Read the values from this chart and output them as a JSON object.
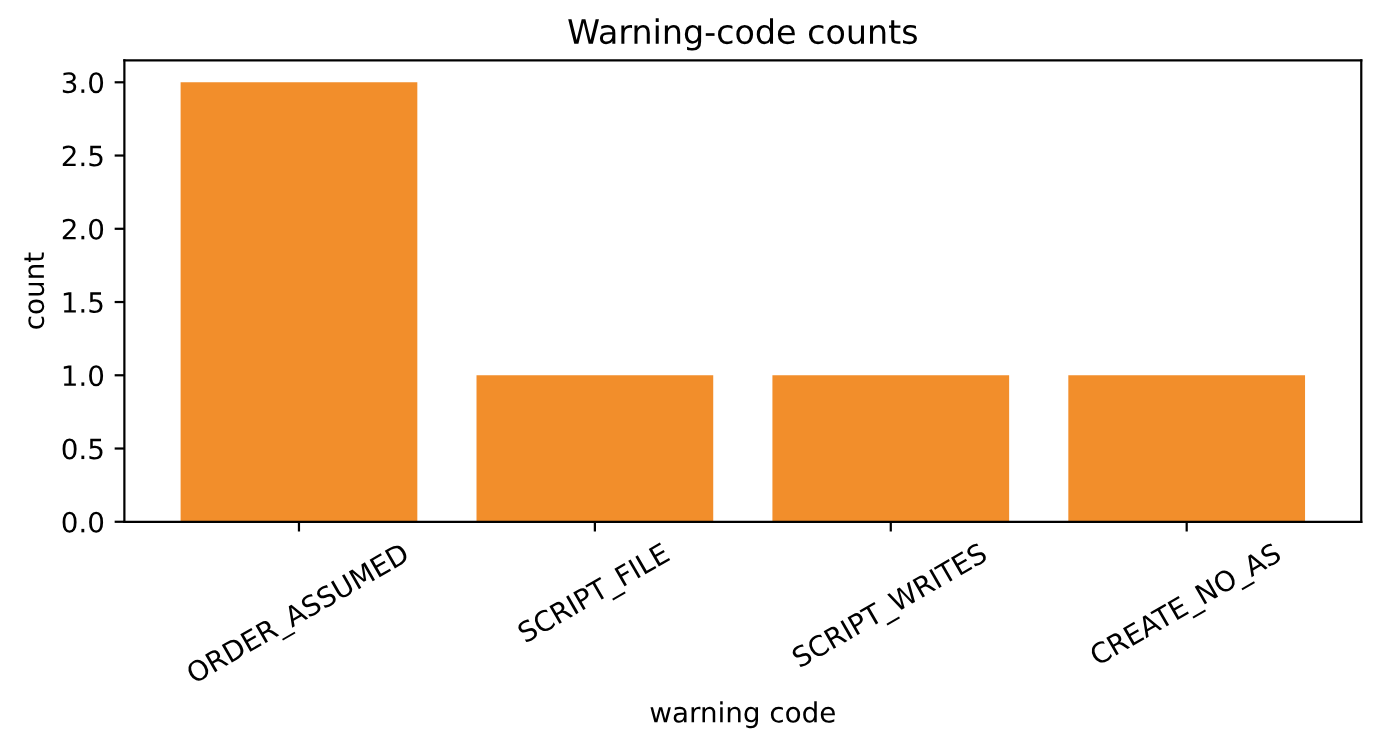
{
  "chart_data": {
    "type": "bar",
    "title": "Warning-code counts",
    "xlabel": "warning code",
    "ylabel": "count",
    "categories": [
      "ORDER_ASSUMED",
      "SCRIPT_FILE",
      "SCRIPT_WRITES",
      "CREATE_NO_AS"
    ],
    "values": [
      3,
      1,
      1,
      1
    ],
    "color": "#f28e2b",
    "ylim": [
      0,
      3.15
    ],
    "yticks": [
      {
        "value": 0,
        "label": "0.0"
      },
      {
        "value": 0.5,
        "label": "0.5"
      },
      {
        "value": 1,
        "label": "1.0"
      },
      {
        "value": 1.5,
        "label": "1.5"
      },
      {
        "value": 2,
        "label": "2.0"
      },
      {
        "value": 2.5,
        "label": "2.5"
      },
      {
        "value": 3,
        "label": "3.0"
      }
    ],
    "grid": false,
    "legend": false
  }
}
